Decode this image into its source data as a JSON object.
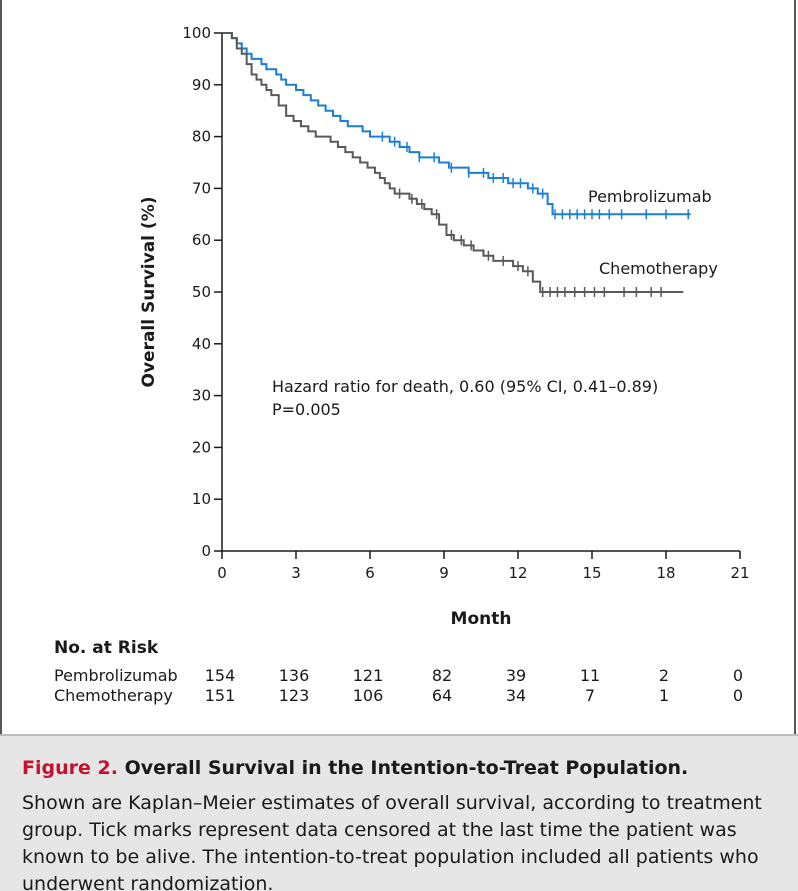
{
  "chart_data": {
    "type": "line",
    "ylabel": "Overall Survival (%)",
    "xlabel": "Month",
    "xlim": [
      0,
      21
    ],
    "ylim": [
      0,
      100
    ],
    "x_ticks": [
      "0",
      "3",
      "6",
      "9",
      "12",
      "15",
      "18",
      "21"
    ],
    "y_ticks": [
      "0",
      "10",
      "20",
      "30",
      "40",
      "50",
      "60",
      "70",
      "80",
      "90",
      "100"
    ],
    "annotation_lines": [
      "Hazard ratio for death, 0.60 (95% CI, 0.41–0.89)",
      "P=0.005"
    ],
    "series": [
      {
        "name": "Pembrolizumab",
        "color": "#1a7fd4",
        "x": [
          0,
          0.4,
          0.6,
          0.8,
          1.0,
          1.2,
          1.4,
          1.6,
          1.8,
          2.0,
          2.2,
          2.4,
          2.6,
          2.8,
          3.0,
          3.3,
          3.6,
          3.9,
          4.2,
          4.5,
          4.8,
          5.1,
          5.4,
          5.7,
          6.0,
          6.4,
          6.8,
          7.2,
          7.6,
          8.0,
          8.4,
          8.8,
          9.2,
          9.6,
          10.0,
          10.4,
          10.8,
          11.2,
          11.6,
          12.0,
          12.4,
          12.8,
          13.2,
          13.4,
          15.0,
          17.0,
          19.0
        ],
        "y": [
          100,
          99,
          98,
          97,
          96,
          95,
          95,
          94,
          93,
          93,
          92,
          91,
          90,
          90,
          89,
          88,
          87,
          86,
          85,
          84,
          83,
          82,
          82,
          81,
          80,
          80,
          79,
          78,
          77,
          76,
          76,
          75,
          74,
          74,
          73,
          73,
          72,
          72,
          71,
          71,
          70,
          69,
          67,
          65,
          65,
          65,
          65
        ],
        "censor_x": [
          6.5,
          7.0,
          7.5,
          8.0,
          8.6,
          9.3,
          10.0,
          10.6,
          11.0,
          11.4,
          11.8,
          12.1,
          12.6,
          13.0,
          13.5,
          13.8,
          14.1,
          14.4,
          14.7,
          15.0,
          15.3,
          15.7,
          16.2,
          17.2,
          18.0,
          18.9
        ]
      },
      {
        "name": "Chemotherapy",
        "color": "#595959",
        "x": [
          0,
          0.4,
          0.6,
          0.8,
          1.0,
          1.2,
          1.4,
          1.6,
          1.8,
          2.0,
          2.3,
          2.6,
          2.9,
          3.2,
          3.5,
          3.8,
          4.1,
          4.4,
          4.7,
          5.0,
          5.3,
          5.6,
          5.9,
          6.2,
          6.4,
          6.6,
          6.8,
          7.0,
          7.3,
          7.6,
          7.9,
          8.2,
          8.5,
          8.8,
          9.1,
          9.4,
          9.8,
          10.2,
          10.6,
          11.0,
          11.4,
          11.8,
          12.2,
          12.6,
          12.9,
          15.0,
          18.7
        ],
        "y": [
          100,
          99,
          97,
          96,
          94,
          92,
          91,
          90,
          89,
          88,
          86,
          84,
          83,
          82,
          81,
          80,
          80,
          79,
          78,
          77,
          76,
          75,
          74,
          73,
          72,
          71,
          70,
          69,
          69,
          68,
          67,
          66,
          65,
          63,
          61,
          60,
          59,
          58,
          57,
          56,
          56,
          55,
          54,
          52,
          50,
          50,
          50
        ],
        "censor_x": [
          7.2,
          7.7,
          8.1,
          8.7,
          9.3,
          9.7,
          10.1,
          10.8,
          11.4,
          12.0,
          12.4,
          13.0,
          13.3,
          13.6,
          13.9,
          14.3,
          14.7,
          15.1,
          15.5,
          16.3,
          16.8,
          17.4,
          17.8
        ]
      }
    ]
  },
  "risk_table": {
    "title": "No. at Risk",
    "rows": [
      {
        "name": "Pembrolizumab",
        "values": [
          "154",
          "136",
          "121",
          "82",
          "39",
          "11",
          "2",
          "0"
        ]
      },
      {
        "name": "Chemotherapy",
        "values": [
          "151",
          "123",
          "106",
          "64",
          "34",
          "7",
          "1",
          "0"
        ]
      }
    ]
  },
  "caption": {
    "label": "Figure 2.",
    "title": "Overall Survival in the Intention-to-Treat Population.",
    "text": "Shown are Kaplan–Meier estimates of overall survival, according to treatment group. Tick marks represent data censored at the last time the patient was known to be alive. The intention-to-treat population included all patients who underwent randomization."
  }
}
